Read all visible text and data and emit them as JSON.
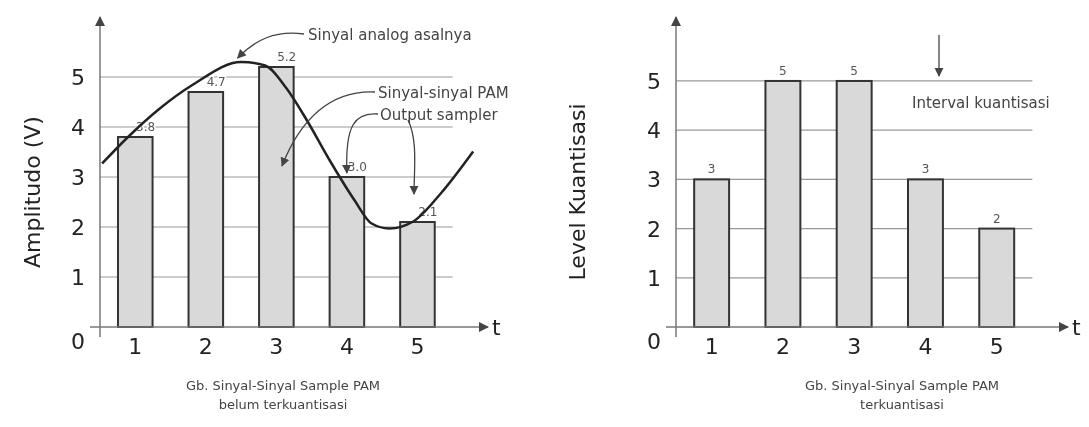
{
  "chart_data": [
    {
      "type": "bar",
      "x": [
        1,
        2,
        3,
        4,
        5
      ],
      "xlim": [
        0.5,
        6
      ],
      "xticks": [
        1,
        2,
        3,
        4,
        5
      ],
      "ylim": [
        0,
        6.2
      ],
      "yticks": [
        0,
        1,
        2,
        3,
        4,
        5
      ],
      "grid": "y",
      "xlabel": "t",
      "ylabel": "Amplitudo (V)",
      "series": [
        {
          "type": "bar",
          "color": "#d9d9d9",
          "values": [
            3.8,
            4.7,
            5.2,
            3.0,
            2.1
          ],
          "value_labels": [
            "3.8",
            "4.7",
            "5.2",
            "3.0",
            "2.1"
          ]
        },
        {
          "type": "line",
          "color": "#222222",
          "x": [
            0.53,
            0.89,
            1.33,
            1.82,
            2.5,
            2.84,
            3.14,
            3.43,
            3.77,
            4.11,
            4.35,
            4.6,
            4.94,
            5.33,
            5.79
          ],
          "values": [
            3.27,
            3.79,
            4.35,
            4.85,
            5.3,
            5.23,
            4.78,
            4.14,
            3.3,
            2.53,
            2.07,
            1.97,
            2.11,
            2.67,
            3.51
          ]
        }
      ],
      "annotations": [
        {
          "text": "Sinyal analog asalnya",
          "x": 2.45,
          "y": 5.3
        },
        "Sinyal-sinyal PAM",
        {
          "text": "Output sampler",
          "x": 4,
          "y": 3.0
        },
        "Gb. Sinyal-Sinyal Sample PAM\nbelum terkuantisasi"
      ]
    },
    {
      "type": "bar",
      "x": [
        1,
        2,
        3,
        4,
        5
      ],
      "xlim": [
        0.5,
        6
      ],
      "xticks": [
        1,
        2,
        3,
        4,
        5
      ],
      "ylim": [
        0,
        6.3
      ],
      "yticks": [
        0,
        1,
        2,
        3,
        4,
        5
      ],
      "grid": "y",
      "xlabel": "t",
      "ylabel": "Level Kuantisasi",
      "color": "#d9d9d9",
      "values": [
        3,
        5,
        5,
        3,
        2
      ],
      "data_labels": true,
      "annotations": [
        "Interval kuantisasi",
        "Gb. Sinyal-Sinyal Sample PAM\nterkuantisasi"
      ]
    }
  ]
}
